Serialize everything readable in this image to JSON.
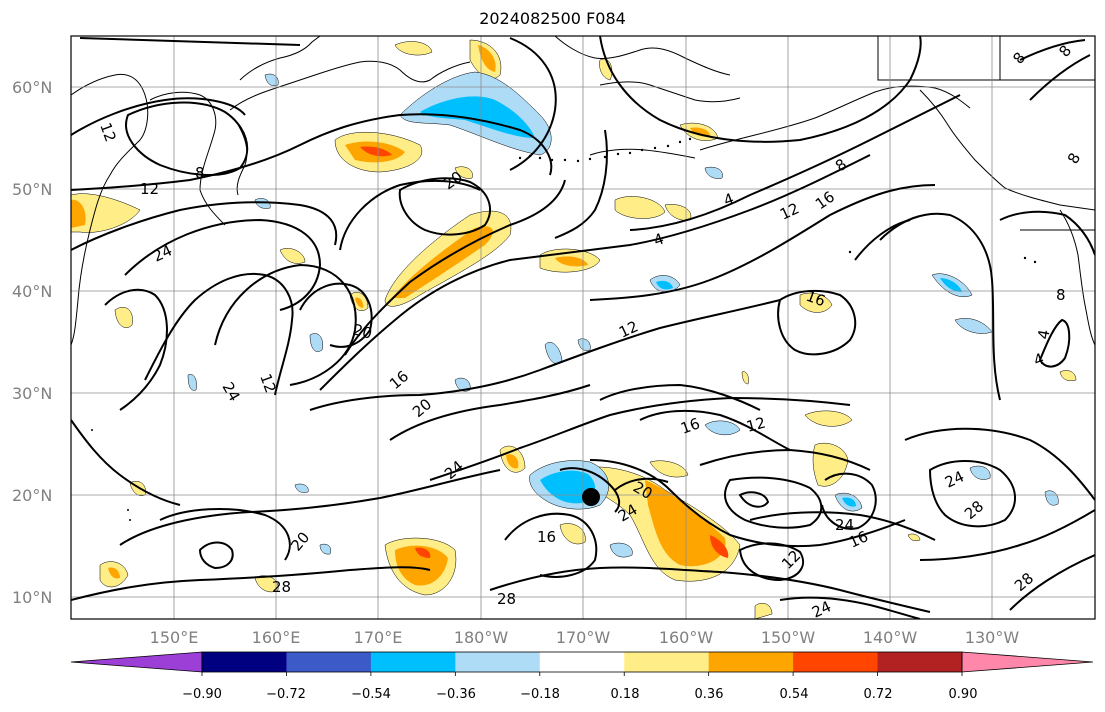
{
  "title": "2024082500 F084",
  "lat_labels": [
    "60°N",
    "50°N",
    "40°N",
    "30°N",
    "20°N",
    "10°N"
  ],
  "lon_labels": [
    "150°E",
    "160°E",
    "170°E",
    "180°W",
    "170°W",
    "160°W",
    "150°W",
    "140°W",
    "130°W"
  ],
  "colorbar": {
    "colors": [
      "#9b3fd6",
      "#000080",
      "#3c5bc8",
      "#00bfff",
      "#aedcf7",
      "#ffffff",
      "#ffee88",
      "#ffa500",
      "#ff4500",
      "#b22222",
      "#ff88aa"
    ],
    "tick_labels": [
      "−0.90",
      "−0.72",
      "−0.54",
      "−0.36",
      "−0.18",
      "0.18",
      "0.36",
      "0.54",
      "0.72",
      "0.90"
    ]
  },
  "contour_labels": [
    "12",
    "8",
    "12",
    "24",
    "20",
    "20",
    "24",
    "12",
    "16",
    "20",
    "24",
    "20",
    "28",
    "16",
    "24",
    "20",
    "28",
    "12",
    "4",
    "4",
    "12",
    "16",
    "8",
    "16",
    "16",
    "12",
    "24",
    "24",
    "16",
    "12",
    "24",
    "28",
    "28",
    "8",
    "8",
    "4",
    "4",
    "8",
    "8"
  ],
  "marker": "storm-center-dot"
}
